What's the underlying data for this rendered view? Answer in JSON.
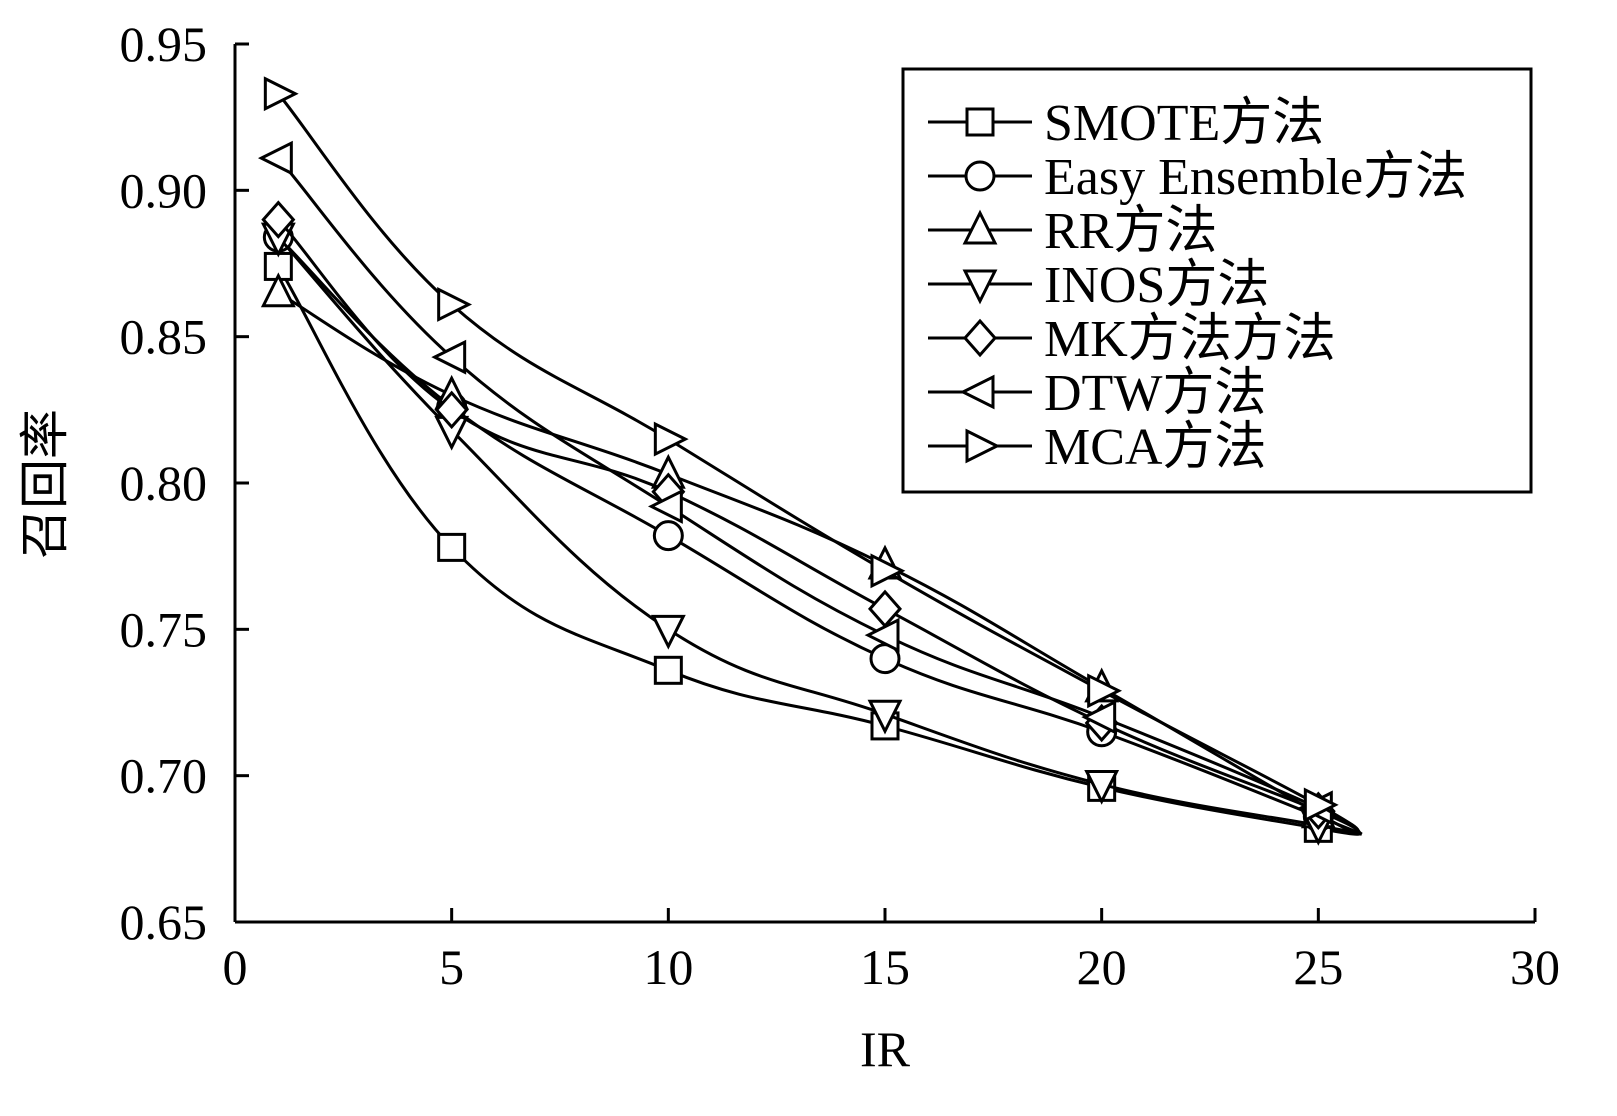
{
  "chart_data": {
    "type": "line",
    "xlabel": "IR",
    "ylabel": "召回率",
    "xlim": [
      0,
      30
    ],
    "ylim": [
      0.65,
      0.95
    ],
    "xticks": [
      "0",
      "5",
      "10",
      "15",
      "20",
      "25",
      "30"
    ],
    "yticks": [
      "0.65",
      "0.70",
      "0.75",
      "0.80",
      "0.85",
      "0.90",
      "0.95"
    ],
    "legend_position": "top-right",
    "grid": false,
    "x": [
      1,
      5,
      10,
      15,
      20,
      25
    ],
    "series": [
      {
        "name": "SMOTE方法",
        "marker": "square",
        "values": [
          0.874,
          0.778,
          0.736,
          0.717,
          0.696,
          0.682
        ]
      },
      {
        "name": "Easy Ensemble方法",
        "marker": "circle",
        "values": [
          0.884,
          0.826,
          0.782,
          0.74,
          0.715,
          0.686
        ]
      },
      {
        "name": "RR方法",
        "marker": "triangle-up",
        "values": [
          0.865,
          0.83,
          0.803,
          0.772,
          0.73,
          0.687
        ]
      },
      {
        "name": "INOS方法",
        "marker": "triangle-down",
        "values": [
          0.884,
          0.818,
          0.75,
          0.721,
          0.697,
          0.683
        ]
      },
      {
        "name": "MK方法方法",
        "marker": "diamond",
        "values": [
          0.89,
          0.825,
          0.797,
          0.757,
          0.718,
          0.688
        ]
      },
      {
        "name": "DTW方法",
        "marker": "triangle-left",
        "values": [
          0.911,
          0.843,
          0.792,
          0.748,
          0.72,
          0.689
        ]
      },
      {
        "name": "MCA方法",
        "marker": "triangle-right",
        "values": [
          0.933,
          0.861,
          0.815,
          0.77,
          0.729,
          0.69
        ]
      }
    ]
  }
}
